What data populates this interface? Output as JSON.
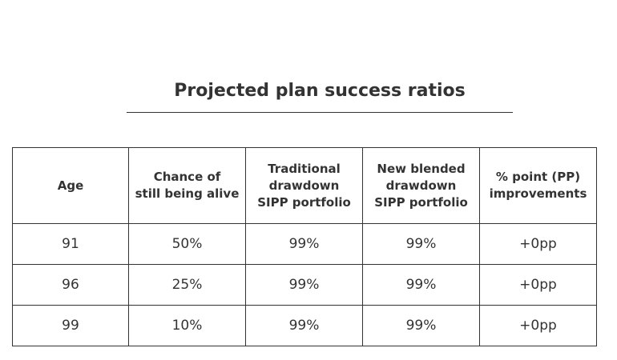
{
  "title": "Projected plan success ratios",
  "table": {
    "headers": [
      [
        "Age"
      ],
      [
        "Chance of",
        "still being alive"
      ],
      [
        "Traditional",
        "drawdown",
        "SIPP portfolio"
      ],
      [
        "New blended",
        "drawdown",
        "SIPP portfolio"
      ],
      [
        "% point (PP)",
        "improvements"
      ]
    ],
    "rows": [
      [
        "91",
        "50%",
        "99%",
        "99%",
        "+0pp"
      ],
      [
        "96",
        "25%",
        "99%",
        "99%",
        "+0pp"
      ],
      [
        "99",
        "10%",
        "99%",
        "99%",
        "+0pp"
      ]
    ]
  }
}
